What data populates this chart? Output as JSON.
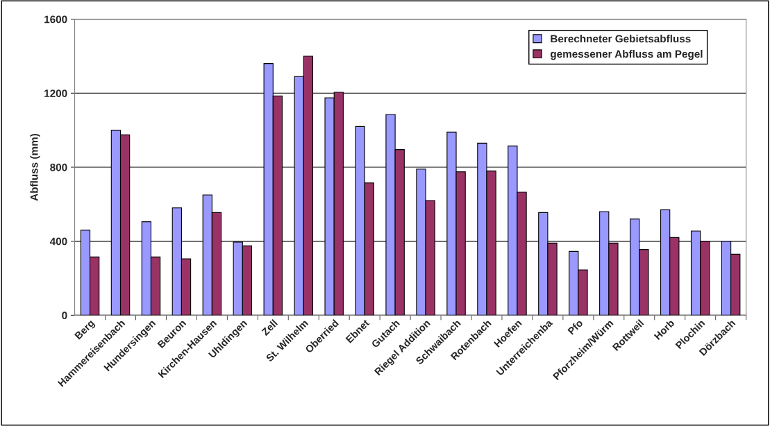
{
  "chart_data": {
    "type": "bar",
    "ylabel": "Abfluss (mm)",
    "categories": [
      "Berg",
      "Hammereisenbach",
      "Hundersingen",
      "Beuron",
      "Kirchen-Hausen",
      "Uhldingen",
      "Zell",
      "St. Wilhelm",
      "Oberried",
      "Ebnet",
      "Gutach",
      "Riegel Addition",
      "Schwaibach",
      "Rotenbach",
      "Hoefen",
      "Unterreichenba",
      "Pfo",
      "Pforzheim/Würm",
      "Rottweil",
      "Horb",
      "Plochin",
      "Dörzbach"
    ],
    "series": [
      {
        "name": "Berechneter Gebietsabfluss",
        "color": "#9999ff",
        "values": [
          460,
          1000,
          505,
          580,
          650,
          395,
          1360,
          1290,
          1175,
          1020,
          1085,
          790,
          990,
          930,
          915,
          555,
          345,
          560,
          520,
          570,
          455,
          400
        ]
      },
      {
        "name": "gemessener Abfluss am Pegel",
        "color": "#993366",
        "values": [
          315,
          975,
          315,
          305,
          555,
          375,
          1185,
          1400,
          1205,
          715,
          895,
          620,
          775,
          780,
          665,
          390,
          245,
          390,
          355,
          420,
          400,
          330
        ]
      }
    ],
    "ylim": [
      0,
      1600
    ],
    "yticks": [
      0,
      400,
      800,
      1200,
      1600
    ],
    "grid": "y",
    "legend": "top right"
  }
}
